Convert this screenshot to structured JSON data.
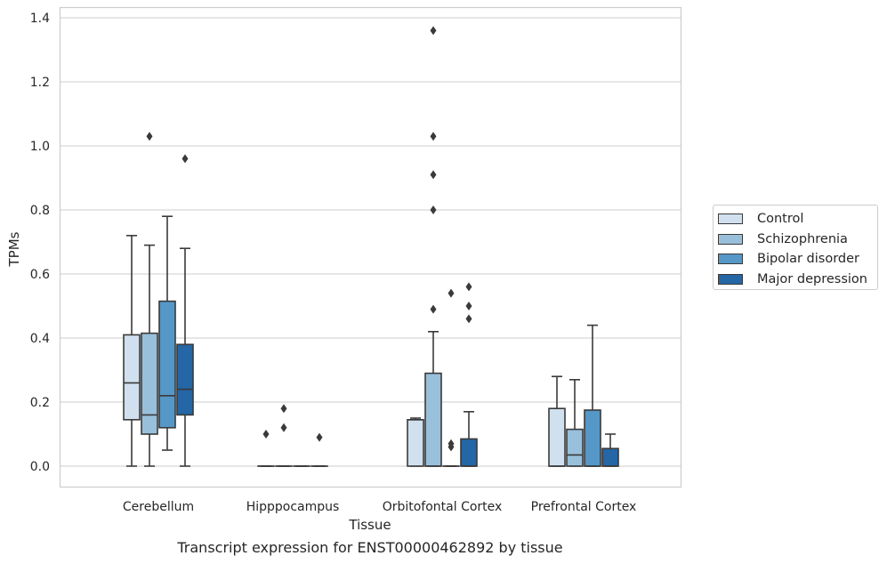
{
  "chart_data": {
    "type": "box",
    "xlabel": "Tissue",
    "ylabel": "TPMs",
    "caption": "Transcript expression for ENST00000462892 by tissue",
    "ylim": [
      -0.07,
      1.43
    ],
    "yticks": [
      "0.0",
      "0.2",
      "0.4",
      "0.6",
      "0.8",
      "1.0",
      "1.2",
      "1.4"
    ],
    "grid": "horizontal",
    "legend_position": "right",
    "categories": [
      "Cerebellum",
      "Hipppocampus",
      "Orbitofontal Cortex",
      "Prefrontal Cortex"
    ],
    "series": [
      {
        "name": "Control",
        "color": "#d0e0ef",
        "boxes": [
          {
            "whislo": 0.0,
            "q1": 0.145,
            "med": 0.26,
            "q3": 0.41,
            "whishi": 0.72,
            "fliers": []
          },
          {
            "whislo": 0.0,
            "q1": 0.0,
            "med": 0.0,
            "q3": 0.0,
            "whishi": 0.0,
            "fliers": [
              0.1
            ]
          },
          {
            "whislo": 0.0,
            "q1": 0.0,
            "med": 0.145,
            "q3": 0.145,
            "whishi": 0.15,
            "fliers": []
          },
          {
            "whislo": 0.0,
            "q1": 0.0,
            "med": 0.0,
            "q3": 0.18,
            "whishi": 0.28,
            "fliers": []
          }
        ]
      },
      {
        "name": "Schizophrenia",
        "color": "#99c0db",
        "boxes": [
          {
            "whislo": 0.0,
            "q1": 0.1,
            "med": 0.16,
            "q3": 0.415,
            "whishi": 0.69,
            "fliers": [
              1.03
            ]
          },
          {
            "whislo": 0.0,
            "q1": 0.0,
            "med": 0.0,
            "q3": 0.0,
            "whishi": 0.0,
            "fliers": [
              0.12,
              0.18
            ]
          },
          {
            "whislo": 0.0,
            "q1": 0.0,
            "med": 0.0,
            "q3": 0.29,
            "whishi": 0.42,
            "fliers": [
              0.49,
              0.8,
              0.91,
              1.03,
              1.36
            ]
          },
          {
            "whislo": 0.0,
            "q1": 0.0,
            "med": 0.035,
            "q3": 0.115,
            "whishi": 0.27,
            "fliers": []
          }
        ]
      },
      {
        "name": "Bipolar disorder",
        "color": "#5597c7",
        "boxes": [
          {
            "whislo": 0.05,
            "q1": 0.12,
            "med": 0.22,
            "q3": 0.515,
            "whishi": 0.78,
            "fliers": []
          },
          {
            "whislo": 0.0,
            "q1": 0.0,
            "med": 0.0,
            "q3": 0.0,
            "whishi": 0.0,
            "fliers": []
          },
          {
            "whislo": 0.0,
            "q1": 0.0,
            "med": 0.0,
            "q3": 0.0,
            "whishi": 0.0,
            "fliers": [
              0.06,
              0.07,
              0.54
            ]
          },
          {
            "whislo": 0.0,
            "q1": 0.0,
            "med": 0.0,
            "q3": 0.175,
            "whishi": 0.44,
            "fliers": []
          }
        ]
      },
      {
        "name": "Major depression",
        "color": "#2466a6",
        "boxes": [
          {
            "whislo": 0.0,
            "q1": 0.16,
            "med": 0.24,
            "q3": 0.38,
            "whishi": 0.68,
            "fliers": [
              0.96
            ]
          },
          {
            "whislo": 0.0,
            "q1": 0.0,
            "med": 0.0,
            "q3": 0.0,
            "whishi": 0.0,
            "fliers": [
              0.09
            ]
          },
          {
            "whislo": 0.0,
            "q1": 0.0,
            "med": 0.0,
            "q3": 0.085,
            "whishi": 0.17,
            "fliers": [
              0.46,
              0.5,
              0.56
            ]
          },
          {
            "whislo": 0.0,
            "q1": 0.0,
            "med": 0.0,
            "q3": 0.055,
            "whishi": 0.1,
            "fliers": []
          }
        ]
      }
    ]
  }
}
